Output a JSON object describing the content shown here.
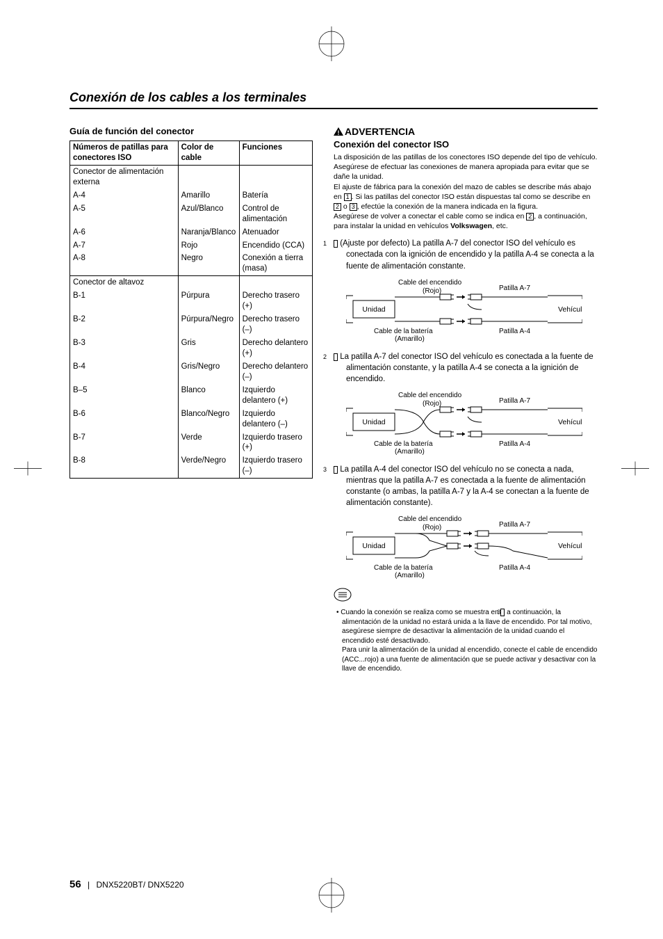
{
  "title": "Conexión de los cables a los terminales",
  "left": {
    "heading": "Guía de función del conector",
    "headers": [
      "Números de patillas para conectores ISO",
      "Color de cable",
      "Funciones"
    ],
    "group1_label": "Conector de alimentación externa",
    "group1_rows": [
      [
        "A-4",
        "Amarillo",
        "Batería"
      ],
      [
        "A-5",
        "Azul/Blanco",
        "Control de alimentación"
      ],
      [
        "A-6",
        "Naranja/Blanco",
        "Atenuador"
      ],
      [
        "A-7",
        "Rojo",
        "Encendido (CCA)"
      ],
      [
        "A-8",
        "Negro",
        "Conexión a tierra (masa)"
      ]
    ],
    "group2_label": "Conector de altavoz",
    "group2_rows": [
      [
        "B-1",
        "Púrpura",
        "Derecho trasero (+)"
      ],
      [
        "B-2",
        "Púrpura/Negro",
        "Derecho trasero (–)"
      ],
      [
        "B-3",
        "Gris",
        "Derecho delantero (+)"
      ],
      [
        "B-4",
        "Gris/Negro",
        "Derecho delantero (–)"
      ],
      [
        "B–5",
        "Blanco",
        "Izquierdo delantero (+)"
      ],
      [
        "B-6",
        "Blanco/Negro",
        "Izquierdo delantero (–)"
      ],
      [
        "B-7",
        "Verde",
        "Izquierdo trasero (+)"
      ],
      [
        "B-8",
        "Verde/Negro",
        "Izquierdo trasero (–)"
      ]
    ]
  },
  "right": {
    "warning_label": "ADVERTENCIA",
    "iso_heading": "Conexión del conector ISO",
    "intro": "La disposición de las patillas de los conectores ISO depende del tipo de vehículo. Asegúrese de efectuar las conexiones de manera apropiada para evitar que se dañe la unidad.\nEl ajuste de fábrica para la conexión del mazo de cables se describe más abajo en [1]. Si las patillas del conector ISO están dispuestas tal como se describe en [2] o [3], efectúe la conexión de la manera indicada en la figura.\nAsegúrese de volver a conectar el cable como se indica en [2], a continuación, para instalar la unidad en vehículos Volkswagen, etc.",
    "item1": "(Ajuste por defecto) La patilla A-7 del conector ISO del vehículo es conectada con la ignición de encendido y la patilla A-4  se conecta a la fuente de alimentación constante.",
    "item2": "La patilla A-7 del conector ISO del vehículo es conectada a la fuente de alimentación constante, y la patilla A-4 se conecta a la ignición de encendido.",
    "item3": "La patilla A-4 del conector ISO del vehículo no se conecta a nada, mientras que la patilla A-7 es conectada a la fuente de alimentación constante (o ambas, la patilla A-7 y la A-4 se conectan a la fuente de alimentación constante).",
    "diag": {
      "unidad": "Unidad",
      "vehiculo": "Vehículo",
      "ign_cable": "Cable del encendido",
      "rojo": "(Rojo)",
      "bat_cable": "Cable de la batería",
      "amarillo": "(Amarillo)",
      "pa7": "Patilla A-7",
      "pa4": "Patilla A-4"
    },
    "note": "Cuando la conexión se realiza como se muestra en [3] a continuación, la alimentación de la unidad no estará unida a la llave de encendido. Por tal motivo, asegúrese siempre de desactivar la  alimentación de la unidad cuando el encendido esté desactivado.\nPara unir la alimentación de la unidad al encendido, conecte el cable de encendido (ACC...rojo) a una fuente de alimentación que se puede activar y desactivar con la llave de encendido."
  },
  "footer": {
    "page": "56",
    "model": "DNX5220BT/ DNX5220"
  },
  "colors": {
    "text": "#000000",
    "bg": "#ffffff"
  }
}
